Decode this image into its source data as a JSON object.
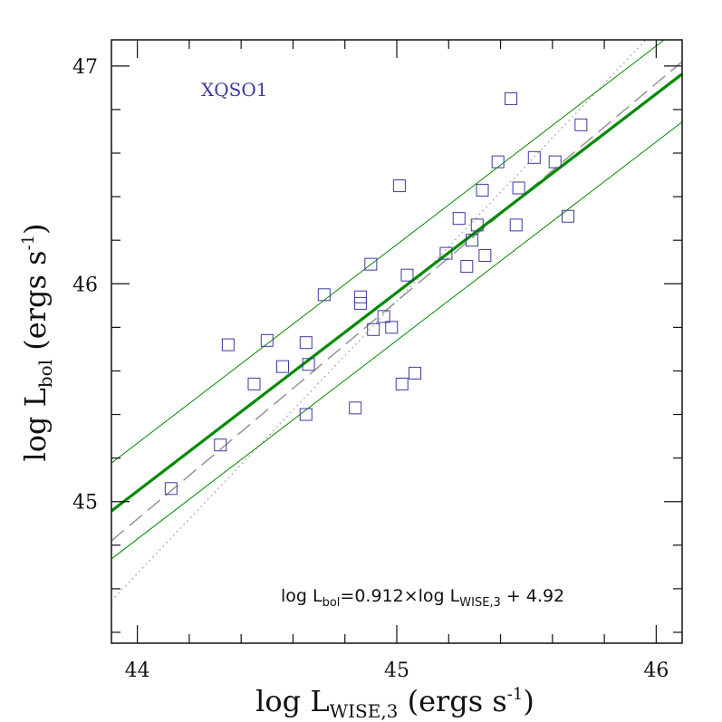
{
  "chart_data": {
    "type": "scatter",
    "title": "",
    "xlabel": {
      "prefix": "log L",
      "sub": "WISE,3",
      "suffix": " (ergs s",
      "sup": "-1",
      "end": ")"
    },
    "ylabel": {
      "prefix": "log L",
      "sub": "bol",
      "suffix": " (ergs s",
      "sup": "-1",
      "end": ")"
    },
    "xlim": [
      43.9,
      46.1
    ],
    "ylim": [
      44.35,
      47.12
    ],
    "x_ticks": [
      44,
      45,
      46
    ],
    "x_tick_labels": [
      "44",
      "45",
      "46"
    ],
    "y_ticks": [
      45,
      46,
      47
    ],
    "y_tick_labels": [
      "45",
      "46",
      "47"
    ],
    "x_minor_step": 0.2,
    "y_minor_step": 0.2,
    "grid": false,
    "tag": {
      "text": "XQSO1",
      "color": "#3a3aa0"
    },
    "equation": {
      "p1": "log L",
      "s1": "bol",
      "p2": "=0.912×log L",
      "s2": "WISE,3",
      "p3": " + 4.92"
    },
    "fit": {
      "slope": 0.912,
      "intercept": 4.92,
      "offset": 0.22,
      "color": "#008a00"
    },
    "dashed_line": {
      "slope": 1.0,
      "intercept": 0.92,
      "color": "#9a9a9a"
    },
    "dotted_line": {
      "slope": 1.25,
      "intercept": -10.33,
      "color": "#9a9a9a"
    },
    "marker_color": "#3a3aa0",
    "points": [
      {
        "x": 44.13,
        "y": 45.06
      },
      {
        "x": 44.32,
        "y": 45.26
      },
      {
        "x": 44.35,
        "y": 45.72
      },
      {
        "x": 44.45,
        "y": 45.54
      },
      {
        "x": 44.5,
        "y": 45.74
      },
      {
        "x": 44.56,
        "y": 45.62
      },
      {
        "x": 44.65,
        "y": 45.73
      },
      {
        "x": 44.66,
        "y": 45.63
      },
      {
        "x": 44.65,
        "y": 45.4
      },
      {
        "x": 44.72,
        "y": 45.95
      },
      {
        "x": 44.84,
        "y": 45.43
      },
      {
        "x": 44.86,
        "y": 45.94
      },
      {
        "x": 44.86,
        "y": 45.91
      },
      {
        "x": 44.9,
        "y": 46.09
      },
      {
        "x": 44.91,
        "y": 45.79
      },
      {
        "x": 44.95,
        "y": 45.85
      },
      {
        "x": 44.98,
        "y": 45.8
      },
      {
        "x": 45.01,
        "y": 46.45
      },
      {
        "x": 45.02,
        "y": 45.54
      },
      {
        "x": 45.04,
        "y": 46.04
      },
      {
        "x": 45.07,
        "y": 45.59
      },
      {
        "x": 45.19,
        "y": 46.14
      },
      {
        "x": 45.24,
        "y": 46.3
      },
      {
        "x": 45.27,
        "y": 46.08
      },
      {
        "x": 45.29,
        "y": 46.2
      },
      {
        "x": 45.31,
        "y": 46.27
      },
      {
        "x": 45.33,
        "y": 46.43
      },
      {
        "x": 45.34,
        "y": 46.13
      },
      {
        "x": 45.39,
        "y": 46.56
      },
      {
        "x": 45.44,
        "y": 46.85
      },
      {
        "x": 45.46,
        "y": 46.27
      },
      {
        "x": 45.47,
        "y": 46.44
      },
      {
        "x": 45.53,
        "y": 46.58
      },
      {
        "x": 45.61,
        "y": 46.56
      },
      {
        "x": 45.66,
        "y": 46.31
      },
      {
        "x": 45.71,
        "y": 46.73
      }
    ]
  }
}
